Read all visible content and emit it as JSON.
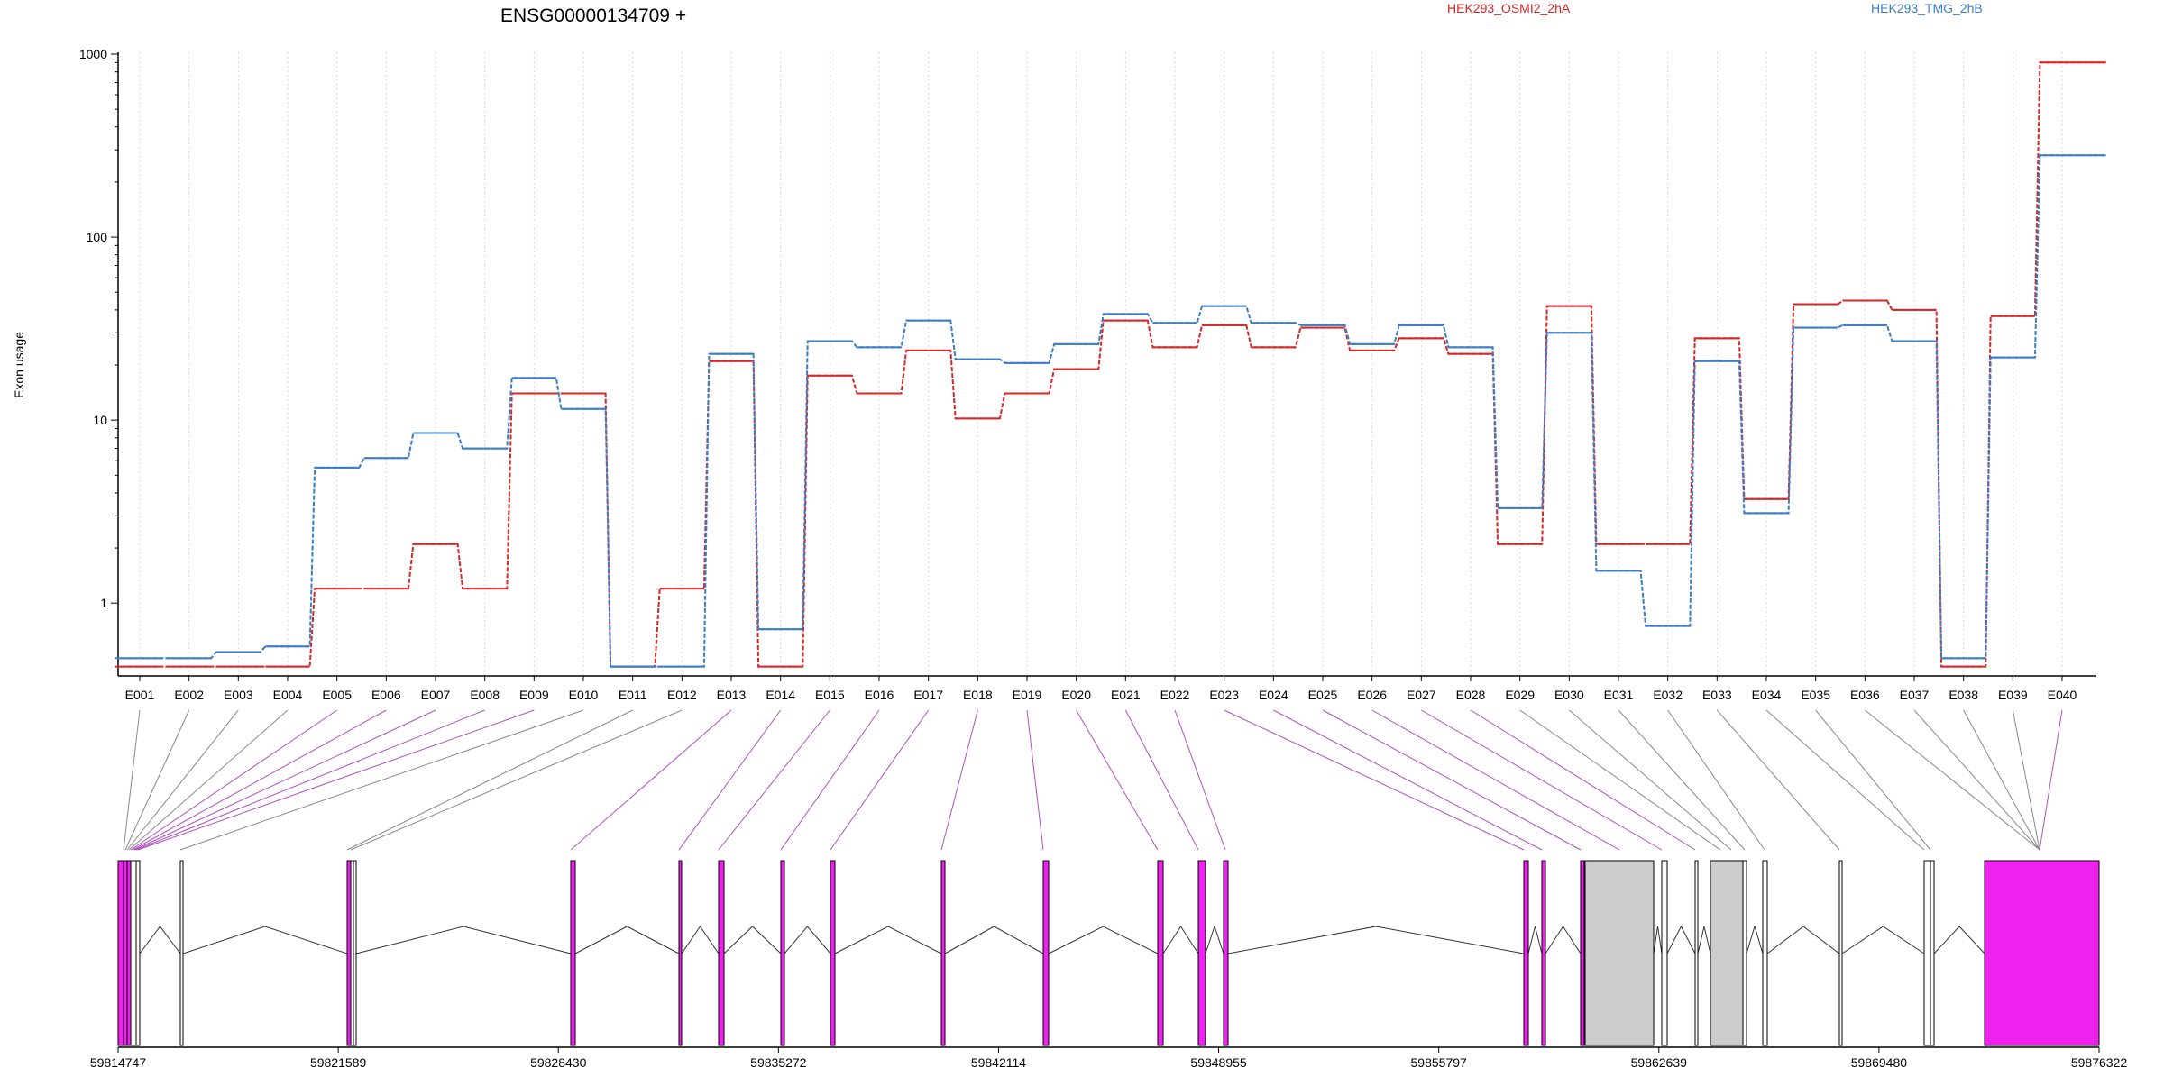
{
  "chart_data": {
    "type": "line",
    "title": "ENSG00000134709 +",
    "ylabel": "Exon usage",
    "xlabel": "",
    "yscale": "log",
    "ylim": [
      0.4,
      1000
    ],
    "grid": "vertical dotted lines at each exon",
    "legend_placement": "top-right",
    "y_ticks": [
      "1",
      "10",
      "100",
      "1000"
    ],
    "categories": [
      "E001",
      "E002",
      "E003",
      "E004",
      "E005",
      "E006",
      "E007",
      "E008",
      "E009",
      "E010",
      "E011",
      "E012",
      "E013",
      "E014",
      "E015",
      "E016",
      "E017",
      "E018",
      "E019",
      "E020",
      "E021",
      "E022",
      "E023",
      "E024",
      "E025",
      "E026",
      "E027",
      "E028",
      "E029",
      "E030",
      "E031",
      "E032",
      "E033",
      "E034",
      "E035",
      "E036",
      "E037",
      "E038",
      "E039",
      "E040"
    ],
    "series": [
      {
        "name": "HEK293_OSMI2_2hA",
        "color": "#d62728",
        "values": [
          0.45,
          0.45,
          0.45,
          0.45,
          1.2,
          1.2,
          2.1,
          1.2,
          14,
          14,
          0.45,
          1.2,
          21,
          0.45,
          17.5,
          14,
          24,
          10.2,
          14,
          19,
          35,
          25,
          33,
          25,
          32,
          24,
          28,
          23,
          2.1,
          42,
          2.1,
          2.1,
          28,
          3.7,
          43,
          45,
          40,
          0.45,
          37,
          900
        ]
      },
      {
        "name": "HEK293_TMG_2hB",
        "color": "#3b7dc4",
        "values": [
          0.5,
          0.5,
          0.54,
          0.58,
          5.5,
          6.2,
          8.5,
          7,
          17,
          11.5,
          0.45,
          0.45,
          23,
          0.72,
          27,
          25,
          35,
          21.5,
          20.5,
          26,
          38,
          34,
          42,
          34,
          33,
          26,
          33,
          25,
          3.3,
          30,
          1.5,
          0.75,
          21,
          3.1,
          32,
          33,
          27,
          0.5,
          22,
          280
        ]
      }
    ],
    "gene_model": {
      "coordinate_ticks": [
        "59814747",
        "59821589",
        "59828430",
        "59835272",
        "59842114",
        "59848955",
        "59855797",
        "59862639",
        "59869480",
        "59876322"
      ],
      "exon_colors": {
        "selected": "#ee22ee",
        "other": "#cccccc"
      }
    }
  }
}
